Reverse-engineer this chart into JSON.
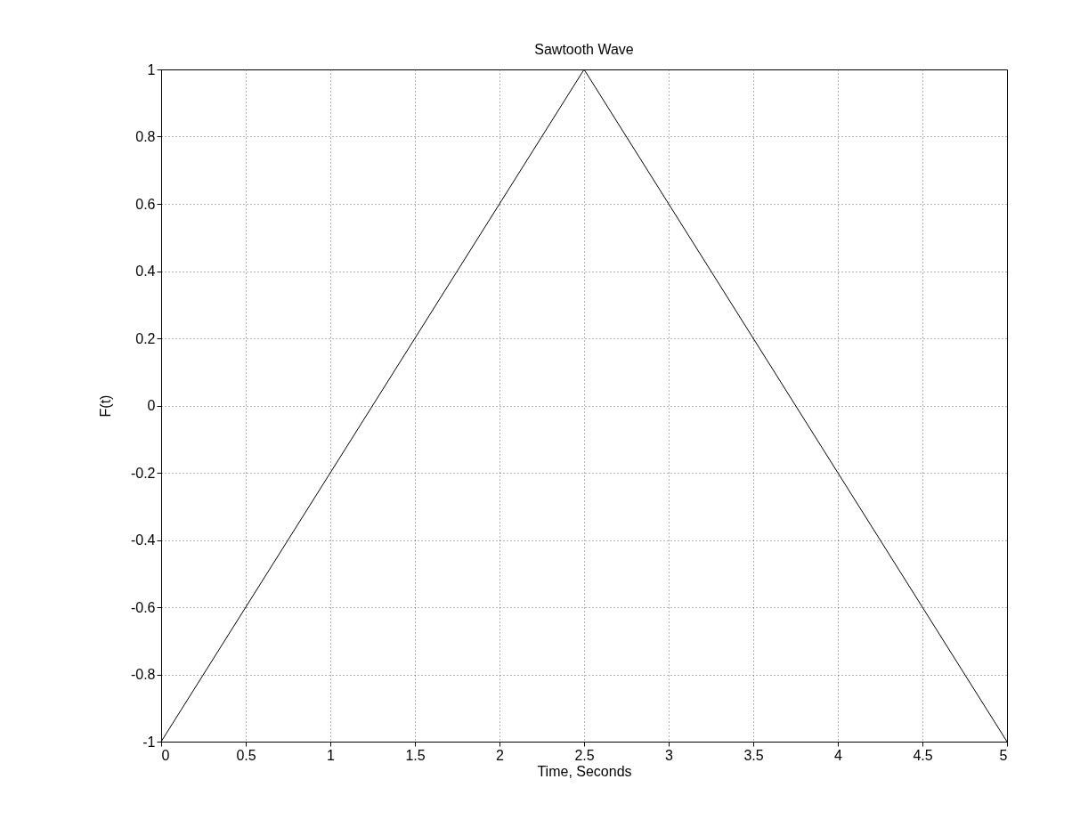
{
  "chart_data": {
    "type": "line",
    "title": "Sawtooth Wave",
    "xlabel": "Time, Seconds",
    "ylabel": "F(t)",
    "x": [
      0,
      2.5,
      5
    ],
    "series": [
      {
        "color": "#000000",
        "values": [
          -1,
          1,
          -1
        ]
      }
    ],
    "xlim": [
      0,
      5
    ],
    "xticks": [
      0,
      0.5,
      1,
      1.5,
      2,
      2.5,
      3,
      3.5,
      4,
      4.5,
      5
    ],
    "ylim": [
      -1,
      1
    ],
    "yticks": [
      -1,
      -0.8,
      -0.6,
      -0.4,
      -0.2,
      0,
      0.2,
      0.4,
      0.6,
      0.8,
      1
    ],
    "grid": true,
    "marker": "none",
    "line_style": "solid",
    "legend": false
  }
}
